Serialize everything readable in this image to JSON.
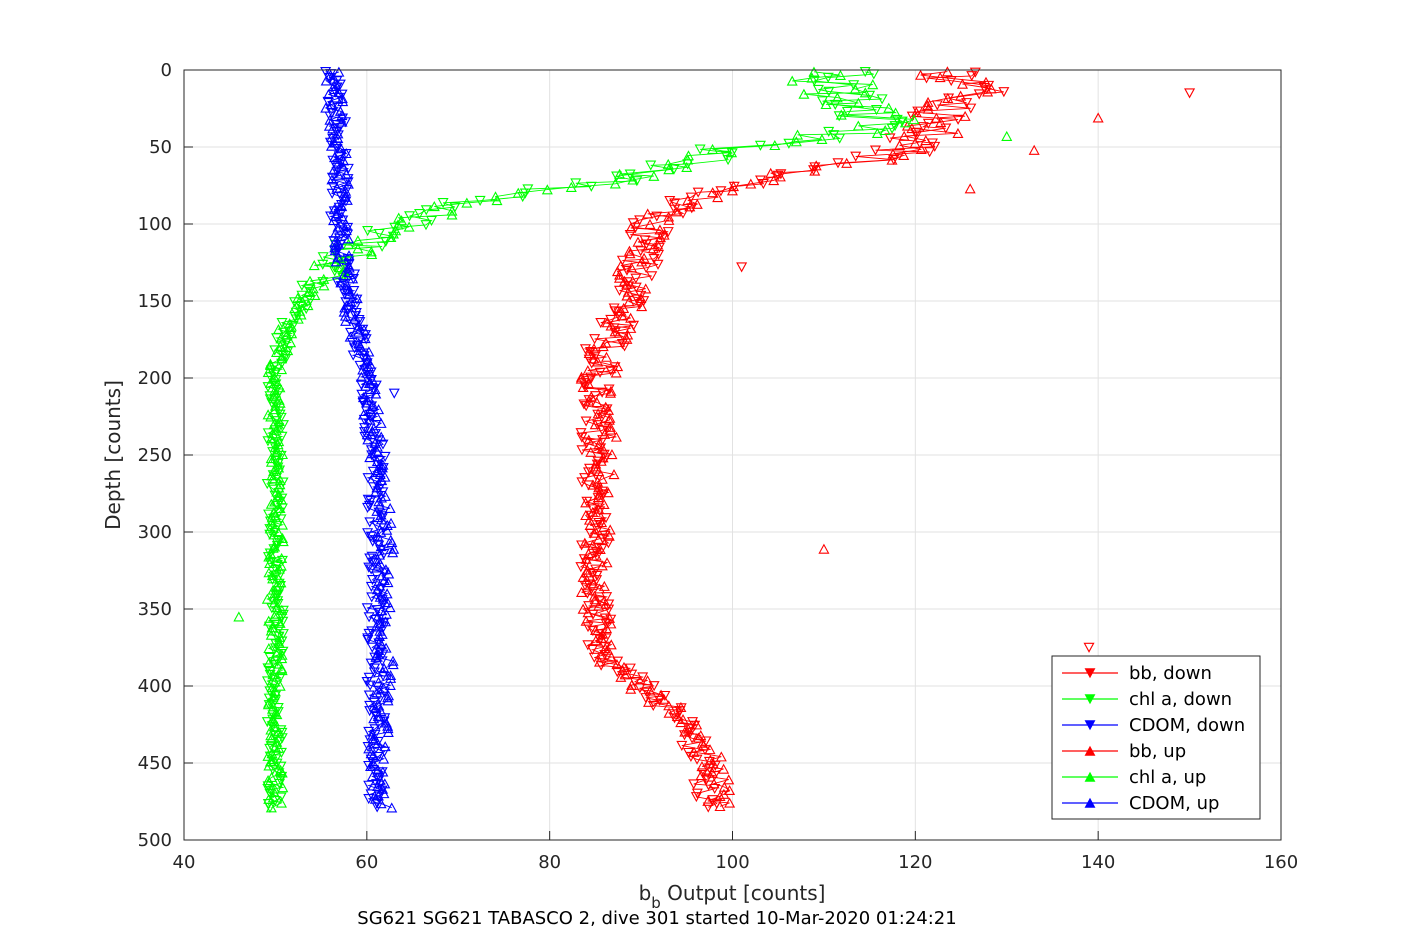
{
  "chart_data": {
    "type": "scatter",
    "title": "SG621 SG621 TABASCO 2, dive 301 started 10-Mar-2020 01:24:21",
    "xlabel": {
      "main": "b",
      "sub": "b",
      "rest": " Output [counts]"
    },
    "ylabel": "Depth [counts]",
    "xlim": [
      40,
      160
    ],
    "ylim": [
      0,
      500
    ],
    "y_reversed": true,
    "grid": true,
    "legend_position": "lower-right",
    "xticks": [
      "40",
      "60",
      "80",
      "100",
      "120",
      "140",
      "160"
    ],
    "yticks": [
      "0",
      "50",
      "100",
      "150",
      "200",
      "250",
      "300",
      "350",
      "400",
      "450",
      "500"
    ],
    "series": [
      {
        "name": "bb, down",
        "color": "#ff0000",
        "marker": "triangle-down",
        "profile": [
          [
            0,
            124
          ],
          [
            15,
            127
          ],
          [
            30,
            122
          ],
          [
            45,
            121
          ],
          [
            55,
            118
          ],
          [
            65,
            108
          ],
          [
            75,
            101
          ],
          [
            85,
            95
          ],
          [
            100,
            91
          ],
          [
            120,
            90
          ],
          [
            140,
            89
          ],
          [
            160,
            88
          ],
          [
            180,
            86
          ],
          [
            200,
            85
          ],
          [
            250,
            85
          ],
          [
            300,
            85
          ],
          [
            350,
            85
          ],
          [
            380,
            86
          ],
          [
            400,
            90
          ],
          [
            420,
            94
          ],
          [
            440,
            96
          ],
          [
            460,
            97
          ],
          [
            480,
            98
          ]
        ]
      },
      {
        "name": "chl a, down",
        "color": "#00ff00",
        "marker": "triangle-down",
        "profile": [
          [
            0,
            110
          ],
          [
            10,
            112
          ],
          [
            20,
            112
          ],
          [
            30,
            115
          ],
          [
            40,
            112
          ],
          [
            50,
            102
          ],
          [
            60,
            95
          ],
          [
            70,
            88
          ],
          [
            80,
            78
          ],
          [
            90,
            68
          ],
          [
            100,
            64
          ],
          [
            110,
            60
          ],
          [
            120,
            58
          ],
          [
            130,
            56
          ],
          [
            150,
            53
          ],
          [
            170,
            51
          ],
          [
            200,
            50
          ],
          [
            250,
            50
          ],
          [
            300,
            50
          ],
          [
            350,
            50
          ],
          [
            400,
            50
          ],
          [
            450,
            50
          ],
          [
            480,
            50
          ]
        ]
      },
      {
        "name": "CDOM, down",
        "color": "#0000ff",
        "marker": "triangle-down",
        "profile": [
          [
            0,
            56
          ],
          [
            50,
            57
          ],
          [
            100,
            57
          ],
          [
            150,
            58
          ],
          [
            200,
            60
          ],
          [
            250,
            61
          ],
          [
            300,
            61
          ],
          [
            350,
            61
          ],
          [
            400,
            61
          ],
          [
            450,
            61
          ],
          [
            480,
            61
          ]
        ]
      },
      {
        "name": "bb, up",
        "color": "#ff0000",
        "marker": "triangle-up",
        "profile": [
          [
            0,
            124
          ],
          [
            15,
            126
          ],
          [
            30,
            122
          ],
          [
            45,
            121
          ],
          [
            55,
            117
          ],
          [
            65,
            107
          ],
          [
            75,
            100
          ],
          [
            85,
            95
          ],
          [
            100,
            91
          ],
          [
            120,
            90
          ],
          [
            140,
            89
          ],
          [
            160,
            88
          ],
          [
            180,
            86
          ],
          [
            200,
            85
          ],
          [
            250,
            86
          ],
          [
            300,
            85
          ],
          [
            350,
            85
          ],
          [
            380,
            86
          ],
          [
            400,
            90
          ],
          [
            420,
            94
          ],
          [
            440,
            97
          ],
          [
            460,
            98
          ],
          [
            480,
            99
          ]
        ]
      },
      {
        "name": "chl a, up",
        "color": "#00ff00",
        "marker": "triangle-up",
        "profile": [
          [
            0,
            110
          ],
          [
            10,
            112
          ],
          [
            20,
            113
          ],
          [
            30,
            116
          ],
          [
            40,
            114
          ],
          [
            50,
            104
          ],
          [
            60,
            96
          ],
          [
            70,
            88
          ],
          [
            80,
            78
          ],
          [
            90,
            68
          ],
          [
            100,
            64
          ],
          [
            110,
            60
          ],
          [
            120,
            58
          ],
          [
            130,
            56
          ],
          [
            150,
            53
          ],
          [
            170,
            51
          ],
          [
            200,
            50
          ],
          [
            250,
            50
          ],
          [
            300,
            50
          ],
          [
            350,
            50
          ],
          [
            400,
            50
          ],
          [
            450,
            50
          ],
          [
            480,
            50
          ]
        ]
      },
      {
        "name": "CDOM, up",
        "color": "#0000ff",
        "marker": "triangle-up",
        "profile": [
          [
            0,
            56
          ],
          [
            50,
            57
          ],
          [
            100,
            57
          ],
          [
            150,
            58
          ],
          [
            200,
            60
          ],
          [
            250,
            61
          ],
          [
            300,
            62
          ],
          [
            350,
            62
          ],
          [
            400,
            62
          ],
          [
            450,
            61
          ],
          [
            480,
            62
          ]
        ]
      }
    ],
    "outliers": [
      {
        "series": "bb, down",
        "x": 150,
        "y": 15
      },
      {
        "series": "bb, up",
        "x": 140,
        "y": 31
      },
      {
        "series": "bb, up",
        "x": 133,
        "y": 52
      },
      {
        "series": "bb, up",
        "x": 126,
        "y": 77
      },
      {
        "series": "bb, down",
        "x": 101,
        "y": 128
      },
      {
        "series": "bb, up",
        "x": 110,
        "y": 311
      },
      {
        "series": "bb, down",
        "x": 139,
        "y": 375
      },
      {
        "series": "chl a, up",
        "x": 130,
        "y": 43
      },
      {
        "series": "chl a, up",
        "x": 46,
        "y": 355
      },
      {
        "series": "CDOM, down",
        "x": 63,
        "y": 210
      }
    ]
  }
}
